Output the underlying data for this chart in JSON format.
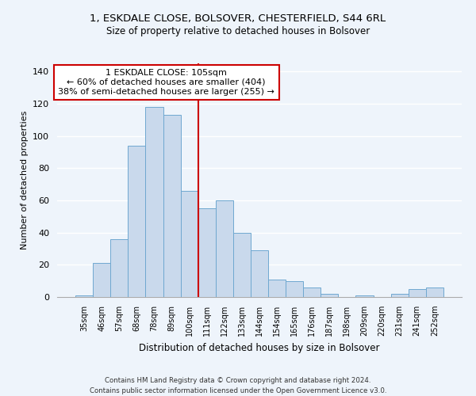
{
  "title_line1": "1, ESKDALE CLOSE, BOLSOVER, CHESTERFIELD, S44 6RL",
  "title_line2": "Size of property relative to detached houses in Bolsover",
  "xlabel": "Distribution of detached houses by size in Bolsover",
  "ylabel": "Number of detached properties",
  "bar_labels": [
    "35sqm",
    "46sqm",
    "57sqm",
    "68sqm",
    "78sqm",
    "89sqm",
    "100sqm",
    "111sqm",
    "122sqm",
    "133sqm",
    "144sqm",
    "154sqm",
    "165sqm",
    "176sqm",
    "187sqm",
    "198sqm",
    "209sqm",
    "220sqm",
    "231sqm",
    "241sqm",
    "252sqm"
  ],
  "bar_values": [
    1,
    21,
    36,
    94,
    118,
    113,
    66,
    55,
    60,
    40,
    29,
    11,
    10,
    6,
    2,
    0,
    1,
    0,
    2,
    5,
    6
  ],
  "bar_color": "#c9d9ec",
  "bar_edge_color": "#6fa8d0",
  "vline_x": 6.5,
  "vline_color": "#cc0000",
  "annotation_title": "1 ESKDALE CLOSE: 105sqm",
  "annotation_line1": "← 60% of detached houses are smaller (404)",
  "annotation_line2": "38% of semi-detached houses are larger (255) →",
  "annotation_box_color": "#ffffff",
  "annotation_box_edge_color": "#cc0000",
  "ylim": [
    0,
    145
  ],
  "footer1": "Contains HM Land Registry data © Crown copyright and database right 2024.",
  "footer2": "Contains public sector information licensed under the Open Government Licence v3.0.",
  "bg_color": "#eef4fb"
}
